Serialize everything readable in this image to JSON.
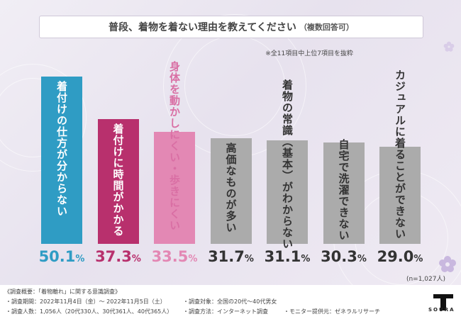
{
  "title": "普段、着物を着ない理由を教えてください",
  "title_sub": "（複数回答可）",
  "note_top": "※全11項目中上位7項目を抜粋",
  "sample_note": "(n=1,027人)",
  "colors": {
    "bar_1": "#2f9cc4",
    "bar_2": "#b8306d",
    "bar_3": "#e388b4",
    "bar_gray": "#ababab",
    "label_1": "#1f7ea8",
    "label_2": "#a32a61",
    "label_3": "#d96fa4",
    "label_gray": "#333333",
    "value_1": "#2f9cc4",
    "value_2": "#b8306d",
    "value_3": "#e388b4"
  },
  "chart_data": {
    "type": "bar",
    "categories": [
      "着付けの仕方が分からない",
      "着付けに時間がかかる",
      "身体を動かしにくい・歩きにくい",
      "高価なものが多い",
      "着物の常識（基本）がわからない",
      "自宅で洗濯できない",
      "カジュアルに着ることができない"
    ],
    "values": [
      50.1,
      37.3,
      33.5,
      31.7,
      31.1,
      30.3,
      29.0
    ],
    "value_labels": [
      "50.1",
      "37.3",
      "33.5",
      "31.7",
      "31.1",
      "30.3",
      "29.0"
    ],
    "unit": "%",
    "title": "普段、着物を着ない理由を教えてください",
    "ylim": [
      0,
      55
    ],
    "grid": false,
    "legend": "none"
  },
  "footer": {
    "heading": "《調査概要：「着物離れ」に関する意識調査》",
    "period": "・調査期間：2022年11月4日（金）〜 2022年11月5日（土）",
    "count": "・調査人数：1,056人（20代330人、30代361人、40代365人）",
    "target": "・調査対象：全国の20代〜40代男女",
    "method": "・調査方法：インターネット調査",
    "provider": "・モニター提供元：ゼネラルリサーチ"
  },
  "logo": {
    "text": "SOURA"
  }
}
